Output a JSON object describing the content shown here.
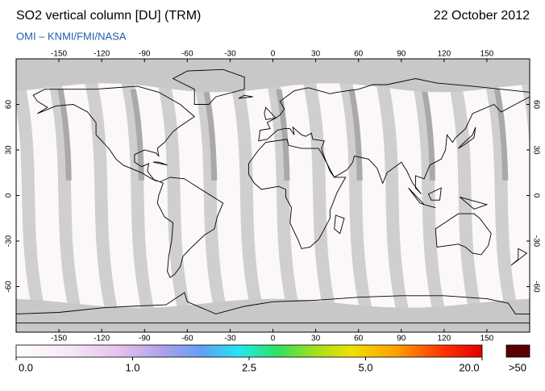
{
  "title": "SO2 vertical column [DU] (TRM)",
  "date": "22 October 2012",
  "subtitle": "OMI  –  KNMI/FMI/NASA",
  "map": {
    "xlim": [
      -180,
      180
    ],
    "ylim": [
      -90,
      90
    ],
    "lon_ticks": [
      -150,
      -120,
      -90,
      -60,
      -30,
      0,
      30,
      60,
      90,
      120,
      150
    ],
    "lat_ticks": [
      60,
      30,
      0,
      -30,
      -60
    ]
  },
  "colorbar": {
    "ticks": [
      {
        "value": 0,
        "label": "0.0"
      },
      {
        "value": 1,
        "label": "1.0"
      },
      2.5,
      {
        "value": 5,
        "label": "5.0"
      },
      {
        "value": 20,
        "label": "20.0"
      }
    ],
    "overflow_label": ">50"
  }
}
